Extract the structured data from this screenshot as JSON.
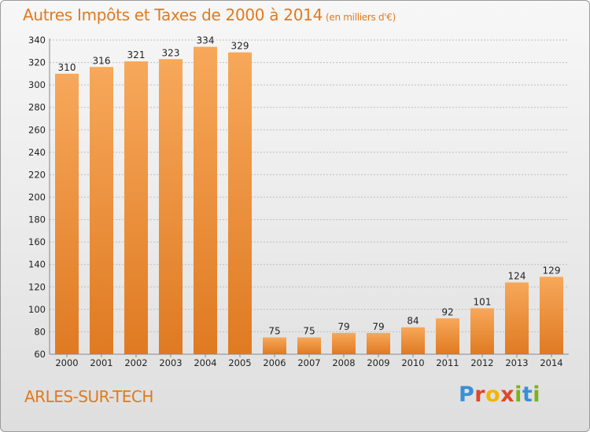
{
  "page": {
    "title": "Autres Impôts et Taxes de 2000 à 2014",
    "subtitle": "(en milliers d'€)",
    "commune": "ARLES-SUR-TECH",
    "brand": "Proxiti"
  },
  "colors": {
    "accent": "#e07a1e",
    "bar_light": "#f7a85a",
    "bar_dark": "#df7a22",
    "grid": "#bdbdbd",
    "axis_text": "#222222"
  },
  "chart_data": {
    "type": "bar",
    "title": "Autres Impôts et Taxes de 2000 à 2014",
    "subtitle": "(en milliers d'€)",
    "categories": [
      "2000",
      "2001",
      "2002",
      "2003",
      "2004",
      "2005",
      "2006",
      "2007",
      "2008",
      "2009",
      "2010",
      "2011",
      "2012",
      "2013",
      "2014"
    ],
    "values": [
      310,
      316,
      321,
      323,
      334,
      329,
      75,
      75,
      79,
      79,
      84,
      92,
      101,
      124,
      129
    ],
    "ylim": [
      60,
      340
    ],
    "yticks": [
      60,
      80,
      100,
      120,
      140,
      160,
      180,
      200,
      220,
      240,
      260,
      280,
      300,
      320,
      340
    ],
    "grid": true,
    "data_labels": true
  }
}
